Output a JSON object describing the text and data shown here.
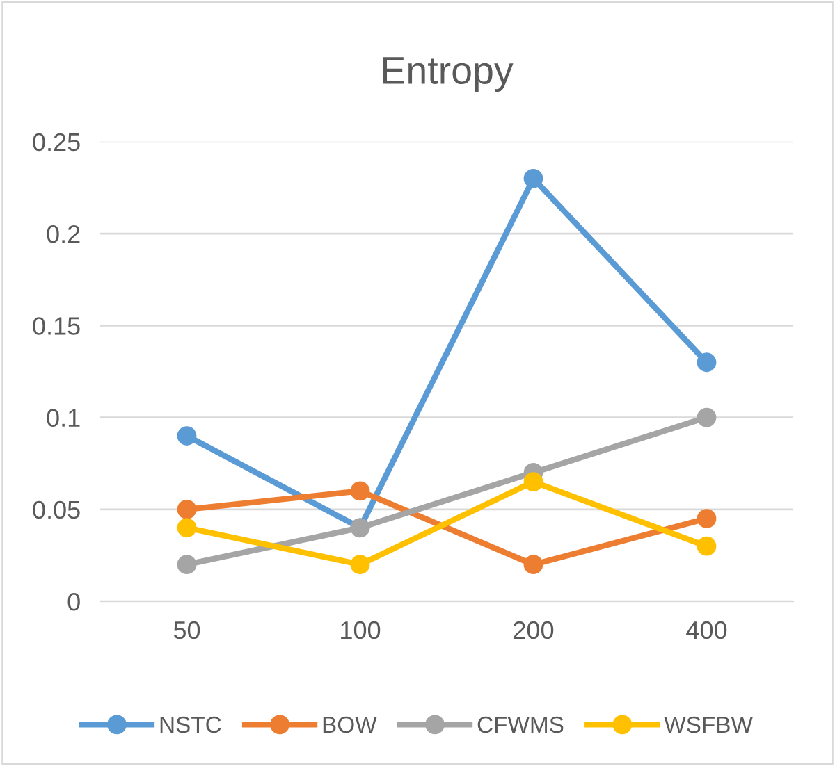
{
  "chart_data": {
    "type": "line",
    "title": "Entropy",
    "categories": [
      "50",
      "100",
      "200",
      "400"
    ],
    "series": [
      {
        "name": "NSTC",
        "color": "#5b9bd5",
        "values": [
          0.09,
          0.04,
          0.23,
          0.13
        ]
      },
      {
        "name": "BOW",
        "color": "#ed7d31",
        "values": [
          0.05,
          0.06,
          0.02,
          0.045
        ]
      },
      {
        "name": "CFWMS",
        "color": "#a5a5a5",
        "values": [
          0.02,
          0.04,
          0.07,
          0.1
        ]
      },
      {
        "name": "WSFBW",
        "color": "#ffc000",
        "values": [
          0.04,
          0.02,
          0.065,
          0.03
        ]
      }
    ],
    "ylim": [
      0,
      0.25
    ],
    "yticks": [
      0,
      0.05,
      0.1,
      0.15,
      0.2,
      0.25
    ],
    "grid": "y",
    "legend": "bottom",
    "marker": "circle",
    "line_style": "solid"
  }
}
